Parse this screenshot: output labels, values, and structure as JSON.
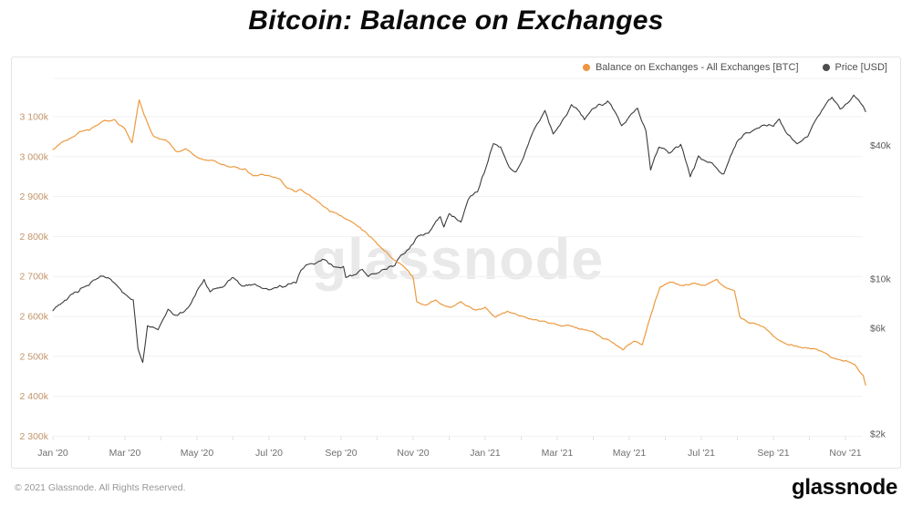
{
  "title": "Bitcoin: Balance on Exchanges",
  "watermark": "glassnode",
  "legend": [
    {
      "label": "Balance on Exchanges - All Exchanges [BTC]",
      "color": "#F0953F"
    },
    {
      "label": "Price [USD]",
      "color": "#4d4d4d"
    }
  ],
  "footer": {
    "copyright": "© 2021 Glassnode. All Rights Reserved.",
    "logo": "glassnode"
  },
  "chart_data": {
    "type": "line",
    "title": "Bitcoin: Balance on Exchanges",
    "grid": "horizontal",
    "legend_position": "top-right",
    "x_axis": {
      "tick_labels": [
        "Jan '20",
        "Mar '20",
        "May '20",
        "Jul '20",
        "Sep '20",
        "Nov '20",
        "Jan '21",
        "Mar '21",
        "May '21",
        "Jul '21",
        "Sep '21",
        "Nov '21"
      ],
      "range": [
        "2020-01-01",
        "2021-11-18"
      ],
      "color": "#6e6e6e"
    },
    "y_left_axis": {
      "series": "Balance on Exchanges - All Exchanges [BTC]",
      "scale": "linear",
      "unit": "BTC",
      "tick_labels": [
        "3 100k",
        "3 000k",
        "2 900k",
        "2 800k",
        "2 700k",
        "2 600k",
        "2 500k",
        "2 400k",
        "2 300k"
      ],
      "tick_values": [
        3100000,
        3000000,
        2900000,
        2800000,
        2700000,
        2600000,
        2500000,
        2400000,
        2300000
      ],
      "color": "#C3946A"
    },
    "y_right_axis": {
      "series": "Price [USD]",
      "scale": "log",
      "unit": "USD",
      "tick_labels": [
        "$40k",
        "$10k",
        "$6k",
        "$2k"
      ],
      "tick_values": [
        40000,
        10000,
        6000,
        2000
      ],
      "color": "#595959"
    },
    "series": [
      {
        "name": "Balance on Exchanges - All Exchanges [BTC]",
        "axis": "left",
        "color": "#ED9A3F",
        "points": [
          [
            "2020-01-01",
            3018000
          ],
          [
            "2020-01-11",
            3040000
          ],
          [
            "2020-01-22",
            3058000
          ],
          [
            "2020-02-01",
            3066000
          ],
          [
            "2020-02-12",
            3088000
          ],
          [
            "2020-02-22",
            3093000
          ],
          [
            "2020-03-01",
            3070000
          ],
          [
            "2020-03-07",
            3035000
          ],
          [
            "2020-03-13",
            3142000
          ],
          [
            "2020-03-17",
            3106000
          ],
          [
            "2020-03-25",
            3052000
          ],
          [
            "2020-04-05",
            3042000
          ],
          [
            "2020-04-15",
            3012000
          ],
          [
            "2020-04-22",
            3020000
          ],
          [
            "2020-05-01",
            2998000
          ],
          [
            "2020-05-12",
            2991000
          ],
          [
            "2020-05-22",
            2980000
          ],
          [
            "2020-06-01",
            2975000
          ],
          [
            "2020-06-12",
            2968000
          ],
          [
            "2020-06-18",
            2952000
          ],
          [
            "2020-06-26",
            2956000
          ],
          [
            "2020-07-03",
            2950000
          ],
          [
            "2020-07-10",
            2944000
          ],
          [
            "2020-07-16",
            2922000
          ],
          [
            "2020-07-24",
            2912000
          ],
          [
            "2020-07-28",
            2918000
          ],
          [
            "2020-08-04",
            2905000
          ],
          [
            "2020-08-14",
            2882000
          ],
          [
            "2020-08-22",
            2862000
          ],
          [
            "2020-09-01",
            2852000
          ],
          [
            "2020-09-12",
            2833000
          ],
          [
            "2020-09-22",
            2810000
          ],
          [
            "2020-09-28",
            2793000
          ],
          [
            "2020-10-05",
            2770000
          ],
          [
            "2020-10-13",
            2747000
          ],
          [
            "2020-10-20",
            2733000
          ],
          [
            "2020-10-27",
            2715000
          ],
          [
            "2020-11-01",
            2698000
          ],
          [
            "2020-11-04",
            2637000
          ],
          [
            "2020-11-12",
            2628000
          ],
          [
            "2020-11-20",
            2641000
          ],
          [
            "2020-12-01",
            2623000
          ],
          [
            "2020-12-11",
            2637000
          ],
          [
            "2020-12-21",
            2618000
          ],
          [
            "2021-01-01",
            2623000
          ],
          [
            "2021-01-10",
            2598000
          ],
          [
            "2021-01-20",
            2613000
          ],
          [
            "2021-02-01",
            2601000
          ],
          [
            "2021-02-13",
            2592000
          ],
          [
            "2021-02-25",
            2583000
          ],
          [
            "2021-03-10",
            2578000
          ],
          [
            "2021-03-20",
            2568000
          ],
          [
            "2021-04-01",
            2561000
          ],
          [
            "2021-04-14",
            2541000
          ],
          [
            "2021-04-26",
            2516000
          ],
          [
            "2021-05-05",
            2538000
          ],
          [
            "2021-05-12",
            2529000
          ],
          [
            "2021-05-19",
            2601000
          ],
          [
            "2021-05-27",
            2673000
          ],
          [
            "2021-06-05",
            2686000
          ],
          [
            "2021-06-15",
            2678000
          ],
          [
            "2021-06-25",
            2683000
          ],
          [
            "2021-07-05",
            2679000
          ],
          [
            "2021-07-14",
            2693000
          ],
          [
            "2021-07-22",
            2671000
          ],
          [
            "2021-07-29",
            2664000
          ],
          [
            "2021-08-03",
            2599000
          ],
          [
            "2021-08-11",
            2583000
          ],
          [
            "2021-08-19",
            2579000
          ],
          [
            "2021-08-26",
            2566000
          ],
          [
            "2021-09-03",
            2546000
          ],
          [
            "2021-09-13",
            2529000
          ],
          [
            "2021-09-23",
            2523000
          ],
          [
            "2021-10-03",
            2519000
          ],
          [
            "2021-10-11",
            2513000
          ],
          [
            "2021-10-19",
            2497000
          ],
          [
            "2021-10-27",
            2491000
          ],
          [
            "2021-11-03",
            2487000
          ],
          [
            "2021-11-09",
            2479000
          ],
          [
            "2021-11-13",
            2461000
          ],
          [
            "2021-11-16",
            2452000
          ],
          [
            "2021-11-18",
            2428000
          ]
        ]
      },
      {
        "name": "Price [USD]",
        "axis": "right",
        "color": "#3b3b3b",
        "points": [
          [
            "2020-01-01",
            7200
          ],
          [
            "2020-01-11",
            8020
          ],
          [
            "2020-01-22",
            8700
          ],
          [
            "2020-02-01",
            9350
          ],
          [
            "2020-02-12",
            10300
          ],
          [
            "2020-02-22",
            9650
          ],
          [
            "2020-03-01",
            8550
          ],
          [
            "2020-03-08",
            8050
          ],
          [
            "2020-03-12",
            4850
          ],
          [
            "2020-03-16",
            4200
          ],
          [
            "2020-03-20",
            6150
          ],
          [
            "2020-03-29",
            5900
          ],
          [
            "2020-04-07",
            7300
          ],
          [
            "2020-04-15",
            6850
          ],
          [
            "2020-04-25",
            7550
          ],
          [
            "2020-05-01",
            8850
          ],
          [
            "2020-05-07",
            9950
          ],
          [
            "2020-05-12",
            8750
          ],
          [
            "2020-05-22",
            9150
          ],
          [
            "2020-06-01",
            10150
          ],
          [
            "2020-06-11",
            9300
          ],
          [
            "2020-06-21",
            9350
          ],
          [
            "2020-06-27",
            9050
          ],
          [
            "2020-07-05",
            9100
          ],
          [
            "2020-07-15",
            9250
          ],
          [
            "2020-07-24",
            9600
          ],
          [
            "2020-07-28",
            10950
          ],
          [
            "2020-08-06",
            11750
          ],
          [
            "2020-08-17",
            12250
          ],
          [
            "2020-08-25",
            11350
          ],
          [
            "2020-09-03",
            11400
          ],
          [
            "2020-09-05",
            10150
          ],
          [
            "2020-09-12",
            10450
          ],
          [
            "2020-09-19",
            11050
          ],
          [
            "2020-09-24",
            10250
          ],
          [
            "2020-10-01",
            10600
          ],
          [
            "2020-10-09",
            11050
          ],
          [
            "2020-10-16",
            11500
          ],
          [
            "2020-10-21",
            12800
          ],
          [
            "2020-10-28",
            13650
          ],
          [
            "2020-11-05",
            15600
          ],
          [
            "2020-11-14",
            16100
          ],
          [
            "2020-11-24",
            19100
          ],
          [
            "2020-11-27",
            17150
          ],
          [
            "2020-12-01",
            19700
          ],
          [
            "2020-12-11",
            18050
          ],
          [
            "2020-12-17",
            22800
          ],
          [
            "2020-12-25",
            24700
          ],
          [
            "2021-01-02",
            32200
          ],
          [
            "2021-01-08",
            40800
          ],
          [
            "2021-01-14",
            39400
          ],
          [
            "2021-01-21",
            32100
          ],
          [
            "2021-01-27",
            30400
          ],
          [
            "2021-02-05",
            38100
          ],
          [
            "2021-02-12",
            47400
          ],
          [
            "2021-02-21",
            57500
          ],
          [
            "2021-02-28",
            45100
          ],
          [
            "2021-03-09",
            54900
          ],
          [
            "2021-03-13",
            61200
          ],
          [
            "2021-03-24",
            52300
          ],
          [
            "2021-04-02",
            59000
          ],
          [
            "2021-04-13",
            63500
          ],
          [
            "2021-04-25",
            49100
          ],
          [
            "2021-05-08",
            58900
          ],
          [
            "2021-05-15",
            46700
          ],
          [
            "2021-05-19",
            31000
          ],
          [
            "2021-05-26",
            39300
          ],
          [
            "2021-06-04",
            36900
          ],
          [
            "2021-06-14",
            40500
          ],
          [
            "2021-06-22",
            28900
          ],
          [
            "2021-06-29",
            35900
          ],
          [
            "2021-07-09",
            33500
          ],
          [
            "2021-07-20",
            29800
          ],
          [
            "2021-07-31",
            41500
          ],
          [
            "2021-08-08",
            45600
          ],
          [
            "2021-08-15",
            47000
          ],
          [
            "2021-08-24",
            49500
          ],
          [
            "2021-09-01",
            48800
          ],
          [
            "2021-09-06",
            52700
          ],
          [
            "2021-09-13",
            44900
          ],
          [
            "2021-09-21",
            40700
          ],
          [
            "2021-09-30",
            43800
          ],
          [
            "2021-10-08",
            53950
          ],
          [
            "2021-10-15",
            61600
          ],
          [
            "2021-10-20",
            66000
          ],
          [
            "2021-10-27",
            58400
          ],
          [
            "2021-11-01",
            61300
          ],
          [
            "2021-11-08",
            67500
          ],
          [
            "2021-11-12",
            64300
          ],
          [
            "2021-11-16",
            60100
          ],
          [
            "2021-11-18",
            56900
          ]
        ]
      }
    ]
  }
}
